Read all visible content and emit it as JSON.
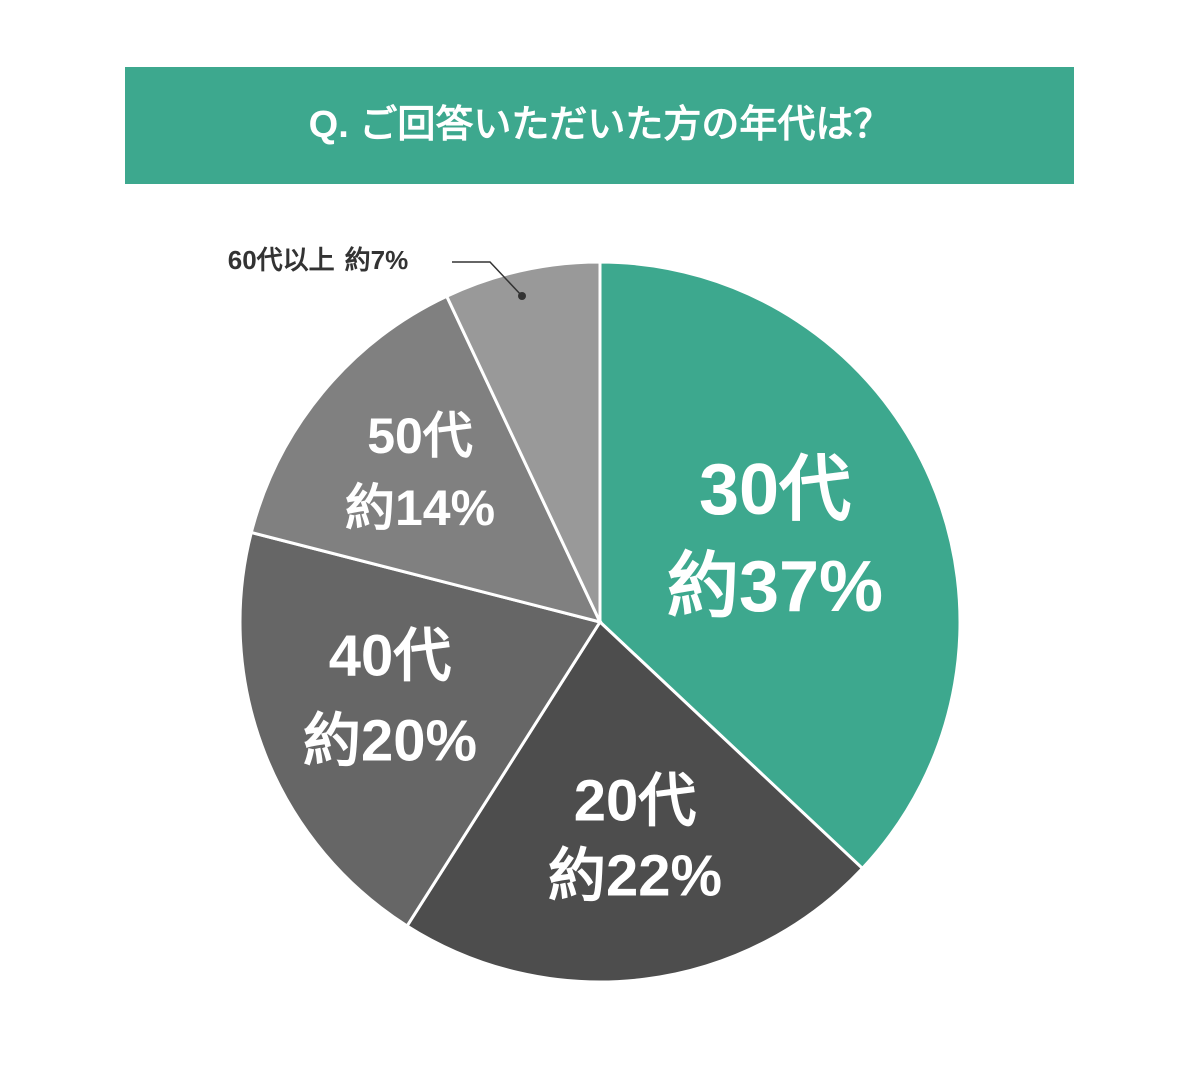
{
  "chart_data": {
    "type": "pie",
    "title": "Q. ご回答いただいた方の年代は？",
    "categories": [
      "30代",
      "20代",
      "40代",
      "50代",
      "60代以上"
    ],
    "values": [
      37,
      22,
      20,
      14,
      7
    ],
    "value_labels": [
      "約37%",
      "約22%",
      "約20%",
      "約14%",
      "約7%"
    ],
    "colors": [
      "#3da88e",
      "#4d4d4d",
      "#666666",
      "#808080",
      "#999999"
    ]
  }
}
